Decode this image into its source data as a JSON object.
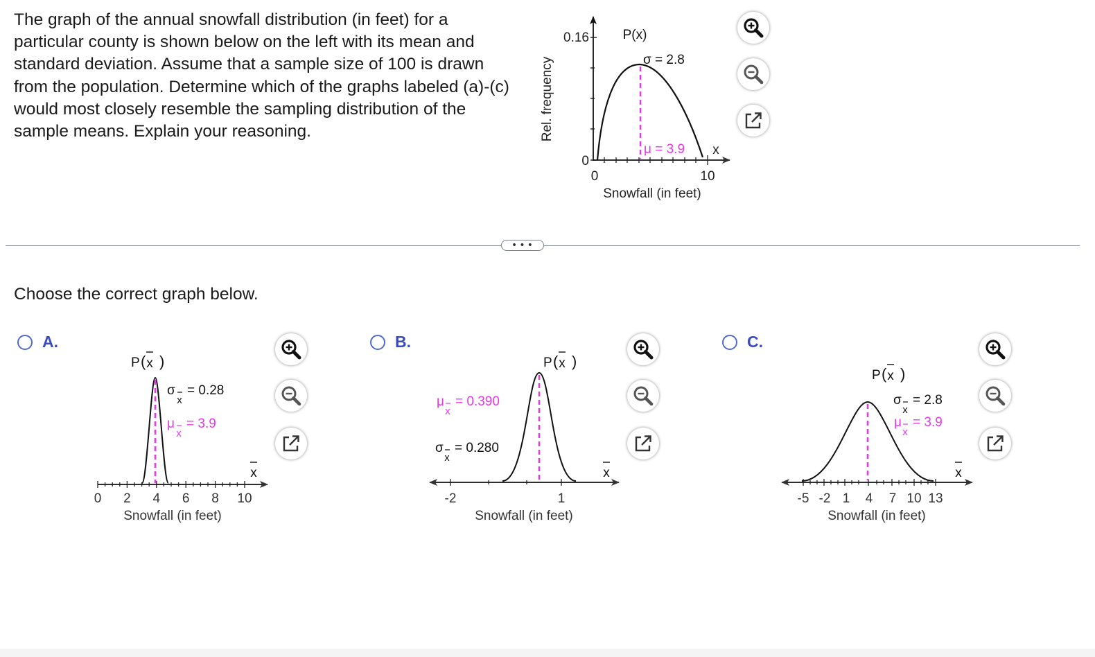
{
  "question": {
    "text": "The graph of the annual snowfall distribution (in feet) for a particular county is shown below on the left with its mean and standard deviation. Assume that a sample size of 100 is drawn from the population. Determine which of the graphs labeled (a)-(c) would most closely resemble the sampling distribution of the sample means. Explain your reasoning."
  },
  "population_graph": {
    "p_label": "P(x)",
    "y_axis_label": "Rel. frequency",
    "y_top_label": "0.16",
    "y_zero_label": "0",
    "x_zero_label": "0",
    "x_ten_label": "10",
    "x_var": "x",
    "x_axis_label": "Snowfall (in feet)",
    "sigma_label": "σ = 2.8",
    "mu_label": "μ = 3.9"
  },
  "divider": {
    "label": "• • •"
  },
  "prompt": "Choose the correct graph below.",
  "options": [
    {
      "letter": "A.",
      "p_label": "P",
      "xbar_label": "x",
      "sigma_label": "σ",
      "sigma_value": "= 0.28",
      "mu_label": "μ",
      "mu_value": "= 3.9",
      "sub": "x",
      "x_ticks": [
        "0",
        "2",
        "4",
        "6",
        "8",
        "10"
      ],
      "x_axis_label": "Snowfall (in feet)"
    },
    {
      "letter": "B.",
      "p_label": "P",
      "xbar_label": "x",
      "sigma_label": "σ",
      "sigma_value": "= 0.280",
      "mu_label": "μ",
      "mu_value": "= 0.390",
      "sub": "x",
      "x_ticks": [
        "-2",
        "1"
      ],
      "x_axis_label": "Snowfall (in feet)"
    },
    {
      "letter": "C.",
      "p_label": "P",
      "xbar_label": "x",
      "sigma_label": "σ",
      "sigma_value": "= 2.8",
      "mu_label": "μ",
      "mu_value": "= 3.9",
      "sub": "x",
      "x_ticks": [
        "-5",
        "-2",
        "1",
        "4",
        "7",
        "10",
        "13"
      ],
      "x_axis_label": "Snowfall (in feet)"
    }
  ],
  "icons": [
    "zoom-in-icon",
    "zoom-out-icon",
    "open-external-icon"
  ],
  "colors": {
    "accent": "#3b4cc0",
    "highlight": "#e838e8",
    "text": "#1a1a1a",
    "radio": "#4f6bd1"
  }
}
